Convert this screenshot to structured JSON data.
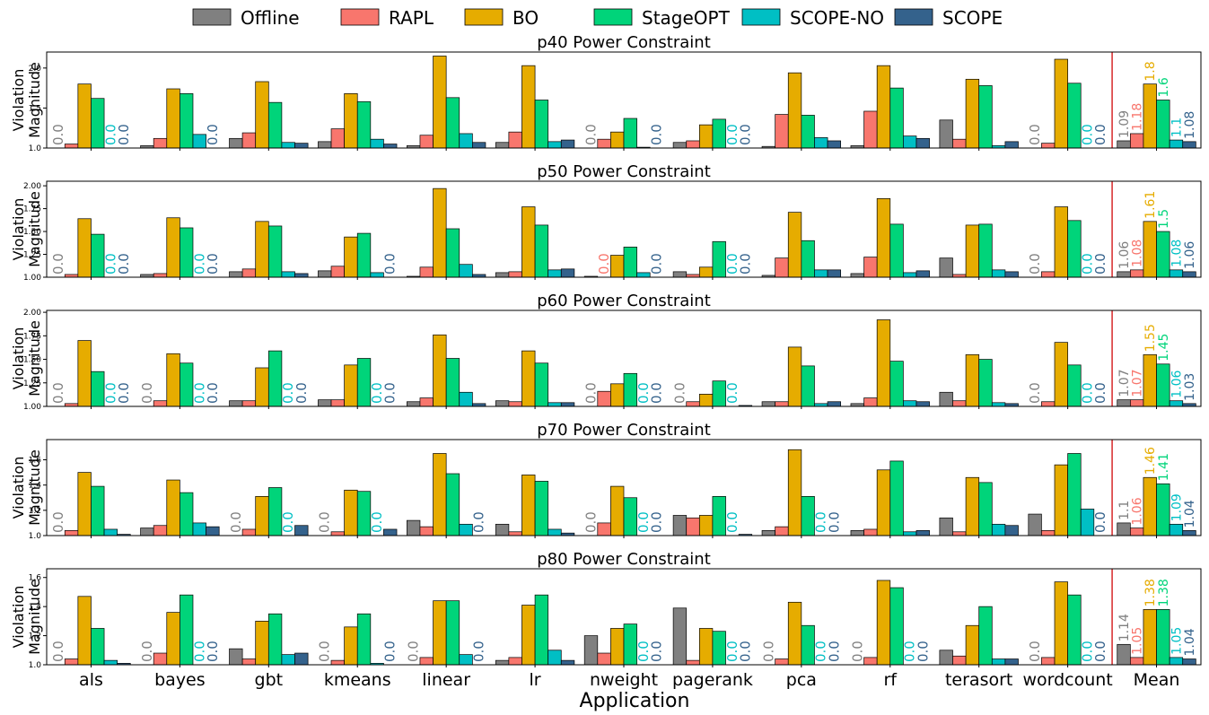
{
  "chart_data": {
    "type": "bar",
    "xlabel": "Application",
    "ylabel": "Violation Magnitude",
    "legend_position": "top",
    "categories": [
      "als",
      "bayes",
      "gbt",
      "kmeans",
      "linear",
      "lr",
      "nweight",
      "pagerank",
      "pca",
      "rf",
      "terasort",
      "wordcount",
      "Mean"
    ],
    "series_meta": [
      {
        "name": "Offline",
        "color": "#808080"
      },
      {
        "name": "RAPL",
        "color": "#f8766d"
      },
      {
        "name": "BO",
        "color": "#e6ac00"
      },
      {
        "name": "StageOPT",
        "color": "#00d47a"
      },
      {
        "name": "SCOPE-NO",
        "color": "#00bfc4"
      },
      {
        "name": "SCOPE",
        "color": "#34628c"
      }
    ],
    "zero_label": "0.0",
    "panels": [
      {
        "title": "p40 Power Constraint",
        "ylim": [
          1.0,
          2.2
        ],
        "yticks": [
          "1.0",
          "1.5",
          "2.0"
        ],
        "series": [
          {
            "name": "Offline",
            "values": [
              1.0,
              1.03,
              1.12,
              1.08,
              1.03,
              1.07,
              1.0,
              1.07,
              1.02,
              1.03,
              1.35,
              1.0,
              1.09
            ]
          },
          {
            "name": "RAPL",
            "values": [
              1.05,
              1.12,
              1.19,
              1.24,
              1.16,
              1.2,
              1.11,
              1.09,
              1.42,
              1.46,
              1.11,
              1.06,
              1.18
            ]
          },
          {
            "name": "BO",
            "values": [
              1.8,
              1.74,
              1.83,
              1.68,
              2.15,
              2.03,
              1.2,
              1.29,
              1.94,
              2.03,
              1.86,
              2.11,
              1.8
            ]
          },
          {
            "name": "StageOPT",
            "values": [
              1.62,
              1.68,
              1.57,
              1.58,
              1.63,
              1.6,
              1.37,
              1.36,
              1.41,
              1.75,
              1.78,
              1.81,
              1.6
            ]
          },
          {
            "name": "SCOPE-NO",
            "values": [
              1.0,
              1.17,
              1.07,
              1.11,
              1.18,
              1.08,
              1.01,
              1.0,
              1.13,
              1.15,
              1.03,
              1.0,
              1.1
            ]
          },
          {
            "name": "SCOPE",
            "values": [
              1.0,
              1.0,
              1.06,
              1.05,
              1.07,
              1.1,
              1.0,
              1.0,
              1.09,
              1.12,
              1.08,
              1.0,
              1.08
            ]
          }
        ],
        "mean_labels": [
          "1.09",
          "1.18",
          "1.8",
          "1.6",
          "1.1",
          "1.08"
        ]
      },
      {
        "title": "p50 Power Constraint",
        "ylim": [
          1.0,
          2.05
        ],
        "yticks": [
          "1.00",
          "1.25",
          "1.50",
          "1.75",
          "2.00"
        ],
        "series": [
          {
            "name": "Offline",
            "values": [
              1.0,
              1.03,
              1.06,
              1.07,
              1.01,
              1.05,
              1.01,
              1.06,
              1.02,
              1.04,
              1.21,
              1.0,
              1.06
            ]
          },
          {
            "name": "RAPL",
            "values": [
              1.03,
              1.04,
              1.09,
              1.12,
              1.11,
              1.06,
              1.0,
              1.03,
              1.21,
              1.22,
              1.03,
              1.06,
              1.08
            ]
          },
          {
            "name": "BO",
            "values": [
              1.64,
              1.65,
              1.61,
              1.44,
              1.97,
              1.77,
              1.24,
              1.11,
              1.71,
              1.86,
              1.57,
              1.77,
              1.61
            ]
          },
          {
            "name": "StageOPT",
            "values": [
              1.47,
              1.54,
              1.56,
              1.48,
              1.53,
              1.57,
              1.33,
              1.39,
              1.4,
              1.58,
              1.58,
              1.62,
              1.5
            ]
          },
          {
            "name": "SCOPE-NO",
            "values": [
              1.0,
              1.0,
              1.06,
              1.05,
              1.14,
              1.08,
              1.05,
              1.0,
              1.08,
              1.05,
              1.08,
              1.0,
              1.08
            ]
          },
          {
            "name": "SCOPE",
            "values": [
              1.0,
              1.0,
              1.04,
              1.0,
              1.03,
              1.09,
              1.0,
              1.0,
              1.08,
              1.07,
              1.06,
              1.0,
              1.06
            ]
          }
        ],
        "mean_labels": [
          "1.06",
          "1.08",
          "1.61",
          "1.5",
          "1.08",
          "1.06"
        ]
      },
      {
        "title": "p60 Power Constraint",
        "ylim": [
          1.0,
          2.02
        ],
        "yticks": [
          "1.00",
          "1.25",
          "1.50",
          "1.75",
          "2.00"
        ],
        "series": [
          {
            "name": "Offline",
            "values": [
              1.0,
              1.0,
              1.06,
              1.07,
              1.05,
              1.06,
              1.0,
              1.0,
              1.05,
              1.03,
              1.15,
              1.0,
              1.07
            ]
          },
          {
            "name": "RAPL",
            "values": [
              1.03,
              1.06,
              1.06,
              1.07,
              1.09,
              1.05,
              1.16,
              1.05,
              1.05,
              1.09,
              1.06,
              1.05,
              1.07
            ]
          },
          {
            "name": "BO",
            "values": [
              1.7,
              1.56,
              1.41,
              1.44,
              1.76,
              1.59,
              1.24,
              1.13,
              1.63,
              1.92,
              1.55,
              1.68,
              1.55
            ]
          },
          {
            "name": "StageOPT",
            "values": [
              1.37,
              1.46,
              1.59,
              1.51,
              1.51,
              1.46,
              1.35,
              1.27,
              1.43,
              1.48,
              1.5,
              1.44,
              1.45
            ]
          },
          {
            "name": "SCOPE-NO",
            "values": [
              1.0,
              1.0,
              1.0,
              1.0,
              1.15,
              1.04,
              1.0,
              1.0,
              1.03,
              1.06,
              1.04,
              1.0,
              1.06
            ]
          },
          {
            "name": "SCOPE",
            "values": [
              1.0,
              1.0,
              1.0,
              1.0,
              1.03,
              1.04,
              1.0,
              1.01,
              1.05,
              1.05,
              1.03,
              1.0,
              1.03
            ]
          }
        ],
        "mean_labels": [
          "1.07",
          "1.07",
          "1.55",
          "1.45",
          "1.06",
          "1.03"
        ]
      },
      {
        "title": "p70 Power Constraint",
        "ylim": [
          1.0,
          1.76
        ],
        "yticks": [
          "1.0",
          "1.2",
          "1.4",
          "1.6"
        ],
        "series": [
          {
            "name": "Offline",
            "values": [
              1.0,
              1.06,
              1.0,
              1.0,
              1.12,
              1.09,
              1.0,
              1.16,
              1.04,
              1.04,
              1.14,
              1.17,
              1.1
            ]
          },
          {
            "name": "RAPL",
            "values": [
              1.04,
              1.08,
              1.05,
              1.03,
              1.07,
              1.03,
              1.1,
              1.14,
              1.07,
              1.05,
              1.03,
              1.04,
              1.06
            ]
          },
          {
            "name": "BO",
            "values": [
              1.5,
              1.44,
              1.31,
              1.36,
              1.65,
              1.48,
              1.39,
              1.16,
              1.68,
              1.52,
              1.46,
              1.56,
              1.46
            ]
          },
          {
            "name": "StageOPT",
            "values": [
              1.39,
              1.34,
              1.38,
              1.35,
              1.49,
              1.43,
              1.3,
              1.31,
              1.31,
              1.59,
              1.42,
              1.65,
              1.41
            ]
          },
          {
            "name": "SCOPE-NO",
            "values": [
              1.05,
              1.1,
              1.0,
              1.0,
              1.09,
              1.05,
              1.0,
              1.0,
              1.0,
              1.03,
              1.09,
              1.21,
              1.09
            ]
          },
          {
            "name": "SCOPE",
            "values": [
              1.01,
              1.07,
              1.08,
              1.05,
              1.0,
              1.02,
              1.0,
              1.01,
              1.0,
              1.04,
              1.08,
              1.0,
              1.04
            ]
          }
        ],
        "mean_labels": [
          "1.1",
          "1.06",
          "1.46",
          "1.41",
          "1.09",
          "1.04"
        ]
      },
      {
        "title": "p80 Power Constraint",
        "ylim": [
          1.0,
          1.66
        ],
        "yticks": [
          "1.0",
          "1.2",
          "1.4",
          "1.6"
        ],
        "series": [
          {
            "name": "Offline",
            "values": [
              1.0,
              1.0,
              1.11,
              1.0,
              1.0,
              1.03,
              1.2,
              1.39,
              1.0,
              1.0,
              1.1,
              1.0,
              1.14
            ]
          },
          {
            "name": "RAPL",
            "values": [
              1.04,
              1.08,
              1.04,
              1.03,
              1.05,
              1.05,
              1.08,
              1.03,
              1.04,
              1.05,
              1.06,
              1.05,
              1.05
            ]
          },
          {
            "name": "BO",
            "values": [
              1.47,
              1.36,
              1.3,
              1.26,
              1.44,
              1.41,
              1.25,
              1.25,
              1.43,
              1.58,
              1.27,
              1.57,
              1.38
            ]
          },
          {
            "name": "StageOPT",
            "values": [
              1.25,
              1.48,
              1.35,
              1.35,
              1.44,
              1.48,
              1.28,
              1.23,
              1.27,
              1.53,
              1.4,
              1.48,
              1.38
            ]
          },
          {
            "name": "SCOPE-NO",
            "values": [
              1.03,
              1.0,
              1.07,
              1.01,
              1.07,
              1.1,
              1.0,
              1.0,
              1.0,
              1.0,
              1.04,
              1.0,
              1.05
            ]
          },
          {
            "name": "SCOPE",
            "values": [
              1.01,
              1.0,
              1.08,
              1.0,
              1.0,
              1.03,
              1.0,
              1.0,
              1.0,
              1.0,
              1.04,
              1.0,
              1.04
            ]
          }
        ],
        "mean_labels": [
          "1.14",
          "1.05",
          "1.38",
          "1.38",
          "1.05",
          "1.04"
        ]
      }
    ]
  }
}
